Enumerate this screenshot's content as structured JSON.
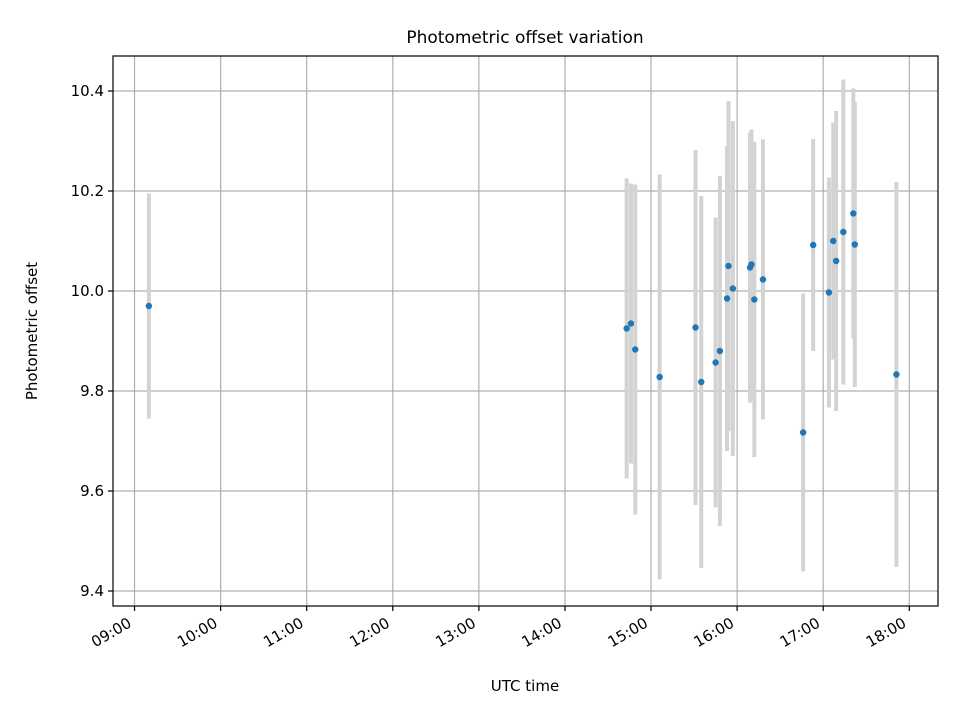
{
  "chart_data": {
    "type": "scatter",
    "title": "Photometric offset variation",
    "xlabel": "UTC time",
    "ylabel": "Photometric offset",
    "x_is_time": true,
    "xlim": [
      "08:45",
      "18:20"
    ],
    "ylim": [
      9.37,
      10.47
    ],
    "xticks": [
      "09:00",
      "10:00",
      "11:00",
      "12:00",
      "13:00",
      "14:00",
      "15:00",
      "16:00",
      "17:00",
      "18:00"
    ],
    "yticks": [
      9.4,
      9.6,
      9.8,
      10.0,
      10.2,
      10.4
    ],
    "ytick_labels": [
      "9.4",
      "9.6",
      "9.8",
      "10.0",
      "10.2",
      "10.4"
    ],
    "grid": true,
    "point_color": "#1f77b4",
    "errorbar_color": "#d3d3d3",
    "series": [
      {
        "points": [
          {
            "t": "09:10",
            "y": 9.97,
            "err": 0.225
          },
          {
            "t": "14:43",
            "y": 9.925,
            "err": 0.3
          },
          {
            "t": "14:46",
            "y": 9.935,
            "err": 0.28
          },
          {
            "t": "14:49",
            "y": 9.883,
            "err": 0.33
          },
          {
            "t": "15:06",
            "y": 9.828,
            "err": 0.405
          },
          {
            "t": "15:31",
            "y": 9.927,
            "err": 0.355
          },
          {
            "t": "15:35",
            "y": 9.818,
            "err": 0.372
          },
          {
            "t": "15:45",
            "y": 9.857,
            "err": 0.29
          },
          {
            "t": "15:48",
            "y": 9.88,
            "err": 0.35
          },
          {
            "t": "15:53",
            "y": 9.985,
            "err": 0.305
          },
          {
            "t": "15:54",
            "y": 10.05,
            "err": 0.33
          },
          {
            "t": "15:57",
            "y": 10.005,
            "err": 0.335
          },
          {
            "t": "16:09",
            "y": 10.047,
            "err": 0.27
          },
          {
            "t": "16:10",
            "y": 10.053,
            "err": 0.27
          },
          {
            "t": "16:12",
            "y": 9.983,
            "err": 0.315
          },
          {
            "t": "16:18",
            "y": 10.023,
            "err": 0.28
          },
          {
            "t": "16:46",
            "y": 9.717,
            "err": 0.278
          },
          {
            "t": "16:53",
            "y": 10.092,
            "err": 0.212
          },
          {
            "t": "17:04",
            "y": 9.997,
            "err": 0.23
          },
          {
            "t": "17:07",
            "y": 10.1,
            "err": 0.237
          },
          {
            "t": "17:09",
            "y": 10.06,
            "err": 0.3
          },
          {
            "t": "17:14",
            "y": 10.118,
            "err": 0.305
          },
          {
            "t": "17:21",
            "y": 10.155,
            "err": 0.25
          },
          {
            "t": "17:22",
            "y": 10.093,
            "err": 0.285
          },
          {
            "t": "17:51",
            "y": 9.833,
            "err": 0.385
          }
        ]
      }
    ]
  }
}
